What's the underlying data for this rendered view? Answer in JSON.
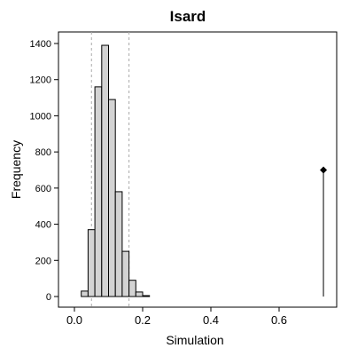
{
  "chart_data": {
    "type": "bar",
    "title": "Isard",
    "xlabel": "Simulation",
    "ylabel": "Frequency",
    "xlim": [
      -0.02,
      0.76
    ],
    "ylim": [
      0,
      1400
    ],
    "x_ticks": [
      0.0,
      0.2,
      0.4,
      0.6
    ],
    "x_tick_labels": [
      "0.0",
      "0.2",
      "0.4",
      "0.6"
    ],
    "y_ticks": [
      0,
      200,
      400,
      600,
      800,
      1000,
      1200,
      1400
    ],
    "y_tick_labels": [
      "0",
      "200",
      "400",
      "600",
      "800",
      "1000",
      "1200",
      "1400"
    ],
    "grid": false,
    "legend": "none",
    "bins": [
      {
        "start": 0.02,
        "end": 0.04,
        "count": 30
      },
      {
        "start": 0.04,
        "end": 0.06,
        "count": 370
      },
      {
        "start": 0.06,
        "end": 0.08,
        "count": 1160
      },
      {
        "start": 0.08,
        "end": 0.1,
        "count": 1390
      },
      {
        "start": 0.1,
        "end": 0.12,
        "count": 1090
      },
      {
        "start": 0.12,
        "end": 0.14,
        "count": 580
      },
      {
        "start": 0.14,
        "end": 0.16,
        "count": 250
      },
      {
        "start": 0.16,
        "end": 0.18,
        "count": 90
      },
      {
        "start": 0.18,
        "end": 0.2,
        "count": 25
      },
      {
        "start": 0.2,
        "end": 0.22,
        "count": 5
      }
    ],
    "interval_lines": [
      0.05,
      0.16
    ],
    "observed": {
      "x": 0.73,
      "y": 700
    },
    "colors": {
      "bar_fill": "#d3d3d3",
      "bar_stroke": "#000000",
      "interval_line": "#aaaaaa",
      "observed": "#000000"
    }
  }
}
